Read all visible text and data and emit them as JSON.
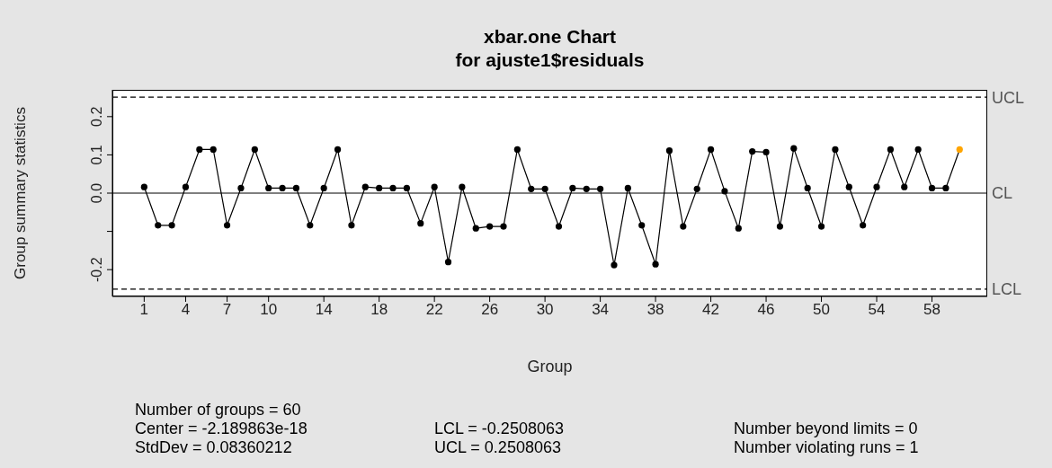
{
  "chart_data": {
    "type": "line",
    "title": "xbar.one Chart",
    "subtitle": "for ajuste1$residuals",
    "xlabel": "Group",
    "ylabel": "Group summary statistics",
    "x": [
      1,
      2,
      3,
      4,
      5,
      6,
      7,
      8,
      9,
      10,
      11,
      12,
      13,
      14,
      15,
      16,
      17,
      18,
      19,
      20,
      21,
      22,
      23,
      24,
      25,
      26,
      27,
      28,
      29,
      30,
      31,
      32,
      33,
      34,
      35,
      36,
      37,
      38,
      39,
      40,
      41,
      42,
      43,
      44,
      45,
      46,
      47,
      48,
      49,
      50,
      51,
      52,
      53,
      54,
      55,
      56,
      57,
      58,
      59,
      60
    ],
    "series": [
      {
        "color": "#000000",
        "colors": [
          "#000000",
          "#000000",
          "#000000",
          "#000000",
          "#000000",
          "#000000",
          "#000000",
          "#000000",
          "#000000",
          "#000000",
          "#000000",
          "#000000",
          "#000000",
          "#000000",
          "#000000",
          "#000000",
          "#000000",
          "#000000",
          "#000000",
          "#000000",
          "#000000",
          "#000000",
          "#000000",
          "#000000",
          "#000000",
          "#000000",
          "#000000",
          "#000000",
          "#000000",
          "#000000",
          "#000000",
          "#000000",
          "#000000",
          "#000000",
          "#000000",
          "#000000",
          "#000000",
          "#000000",
          "#000000",
          "#000000",
          "#000000",
          "#000000",
          "#000000",
          "#000000",
          "#000000",
          "#000000",
          "#000000",
          "#000000",
          "#000000",
          "#000000",
          "#000000",
          "#000000",
          "#000000",
          "#000000",
          "#000000",
          "#000000",
          "#000000",
          "#000000",
          "#000000",
          "#ffa500"
        ],
        "values": [
          0.016,
          -0.084,
          -0.084,
          0.016,
          0.114,
          0.114,
          -0.084,
          0.013,
          0.114,
          0.013,
          0.013,
          0.013,
          -0.084,
          0.013,
          0.114,
          -0.084,
          0.016,
          0.013,
          0.013,
          0.013,
          -0.079,
          0.016,
          -0.18,
          0.016,
          -0.092,
          -0.087,
          -0.087,
          0.114,
          0.011,
          0.011,
          -0.087,
          0.013,
          0.011,
          0.011,
          -0.188,
          0.013,
          -0.084,
          -0.186,
          0.111,
          -0.087,
          0.011,
          0.114,
          0.005,
          -0.092,
          0.109,
          0.107,
          -0.087,
          0.117,
          0.013,
          -0.087,
          0.114,
          0.016,
          -0.084,
          0.016,
          0.114,
          0.016,
          0.114,
          0.013,
          0.013,
          0.114
        ]
      }
    ],
    "xlim": [
      -1.3,
      62
    ],
    "xticks": [
      1,
      4,
      7,
      10,
      14,
      18,
      22,
      26,
      30,
      34,
      38,
      42,
      46,
      50,
      54,
      58
    ],
    "ylim": [
      -0.27,
      0.27
    ],
    "yticks": [
      {
        "value": -0.2,
        "label": "-0.2"
      },
      {
        "value": -0.1,
        "label": null
      },
      {
        "value": 0,
        "label": "0.0"
      },
      {
        "value": 0.1,
        "label": "0.1"
      },
      {
        "value": 0.2,
        "label": "0.2"
      }
    ],
    "ref_lines": [
      {
        "axis": "y",
        "value": 0.2508063,
        "label": "UCL",
        "line_style": "dashed"
      },
      {
        "axis": "y",
        "value": -2.189863e-18,
        "label": "CL",
        "line_style": "solid"
      },
      {
        "axis": "y",
        "value": -0.2508063,
        "label": "LCL",
        "line_style": "dashed"
      }
    ],
    "annotations": [
      "Number of groups = 60",
      "Center = -2.189863e-18",
      "StdDev = 0.08360212",
      "LCL = -0.2508063",
      "UCL = 0.2508063",
      "Number beyond limits = 0",
      "Number violating runs = 1"
    ],
    "grid": false,
    "marker": "circle",
    "line_style": "solid"
  }
}
